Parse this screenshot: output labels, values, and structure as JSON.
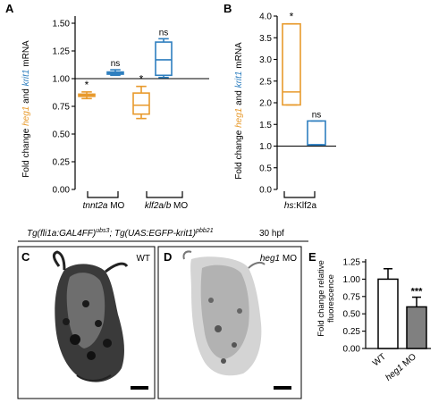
{
  "colors": {
    "heg1": "#e89a2c",
    "krit1": "#2f7fbf",
    "black": "#000000",
    "bar_wt": "#ffffff",
    "bar_mo": "#808080"
  },
  "panels": {
    "A": {
      "letter": "A",
      "ylabel": {
        "part1": "Fold change ",
        "gene1": "heg1",
        "part2": " and ",
        "gene2": "krit1",
        "part3": " mRNA"
      },
      "xgroups": [
        {
          "gene": "tnnt2a",
          "suffix": " MO"
        },
        {
          "gene": "klf2a/b",
          "suffix": " MO"
        }
      ]
    },
    "B": {
      "letter": "B",
      "ylabel": {
        "part1": "Fold change ",
        "gene1": "heg1",
        "part2": " and ",
        "gene2": "krit1",
        "part3": " mRNA"
      },
      "xgroup": {
        "prefix": "hs",
        "suffix": ":Klf2a"
      }
    },
    "C": {
      "letter": "C",
      "label": "WT"
    },
    "D": {
      "letter": "D",
      "label_gene": "heg1",
      "label_suffix": " MO"
    },
    "E": {
      "letter": "E",
      "ylabel_line1": "Fold change relative",
      "ylabel_line2": "fluorescence",
      "xlabels": [
        {
          "text": "WT"
        },
        {
          "gene": "heg1",
          "suffix": " MO"
        }
      ]
    }
  },
  "transgene": {
    "a_main": "Tg(fli1a:GAL4FF)",
    "a_sup": "ubs3",
    "sep": "; ",
    "b_main": "Tg(UAS:EGFP-krit1)",
    "b_sup": "pbb21",
    "stage": "30 hpf"
  },
  "chart_data": [
    {
      "panel": "A",
      "type": "box",
      "ylim": [
        0,
        1.5
      ],
      "yticks": [
        "0.00",
        "0.25",
        "0.50",
        "0.75",
        "1.00",
        "1.25",
        "1.50"
      ],
      "reference_line": 1.0,
      "boxes": [
        {
          "group": "tnnt2a",
          "gene": "heg1",
          "min": 0.82,
          "q1": 0.84,
          "median": 0.85,
          "q3": 0.86,
          "max": 0.88,
          "annotation": "*"
        },
        {
          "group": "tnnt2a",
          "gene": "krit1",
          "min": 1.03,
          "q1": 1.04,
          "median": 1.05,
          "q3": 1.06,
          "max": 1.08,
          "annotation": "ns"
        },
        {
          "group": "klf2a/b",
          "gene": "heg1",
          "min": 0.64,
          "q1": 0.68,
          "median": 0.76,
          "q3": 0.87,
          "max": 0.93,
          "annotation": "*"
        },
        {
          "group": "klf2a/b",
          "gene": "krit1",
          "min": 1.01,
          "q1": 1.03,
          "median": 1.17,
          "q3": 1.33,
          "max": 1.36,
          "annotation": "ns"
        }
      ]
    },
    {
      "panel": "B",
      "type": "box",
      "ylim": [
        0,
        4.0
      ],
      "yticks": [
        "0.0",
        "0.5",
        "1.0",
        "1.5",
        "2.0",
        "2.5",
        "3.0",
        "3.5",
        "4.0"
      ],
      "reference_line": 1.0,
      "boxes": [
        {
          "group": "hs:Klf2a",
          "gene": "heg1",
          "min": 1.95,
          "q1": 1.95,
          "median": 2.25,
          "q3": 3.82,
          "max": 3.82,
          "annotation": "*"
        },
        {
          "group": "hs:Klf2a",
          "gene": "krit1",
          "min": 1.03,
          "q1": 1.03,
          "median": 1.03,
          "q3": 1.58,
          "max": 1.58,
          "annotation": "ns"
        }
      ]
    },
    {
      "panel": "E",
      "type": "bar",
      "categories": [
        "WT",
        "heg1 MO"
      ],
      "values": [
        1.0,
        0.6
      ],
      "errors": [
        0.15,
        0.14
      ],
      "annotations": [
        "",
        "***"
      ],
      "ylim": [
        0,
        1.25
      ],
      "yticks": [
        "0.00",
        "0.25",
        "0.50",
        "0.75",
        "1.00",
        "1.25"
      ]
    }
  ]
}
